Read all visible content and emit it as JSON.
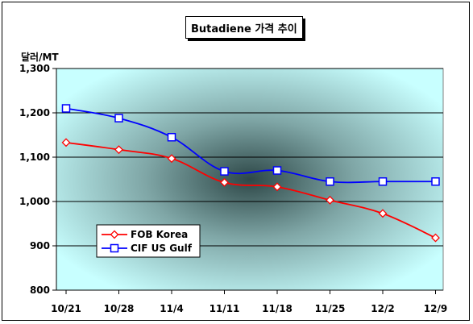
{
  "chart_data": {
    "type": "line",
    "title": "Butadiene 가격 추이",
    "ylabel": "달러/MT",
    "xlabel": "",
    "categories": [
      "10/21",
      "10/28",
      "11/4",
      "11/11",
      "11/18",
      "11/25",
      "12/2",
      "12/9"
    ],
    "y_ticks": [
      "800",
      "900",
      "1,000",
      "1,100",
      "1,200",
      "1,300"
    ],
    "ylim": [
      800,
      1300
    ],
    "grid": true,
    "legend_position": "bottom-left",
    "series": [
      {
        "name": "FOB Korea",
        "color": "#ff0000",
        "marker": "diamond",
        "values": [
          1133,
          1117,
          1097,
          1043,
          1033,
          1003,
          973,
          918
        ]
      },
      {
        "name": "CIF US Gulf",
        "color": "#0000ff",
        "marker": "square",
        "values": [
          1210,
          1188,
          1145,
          1068,
          1070,
          1045,
          1045,
          1045
        ]
      }
    ]
  }
}
